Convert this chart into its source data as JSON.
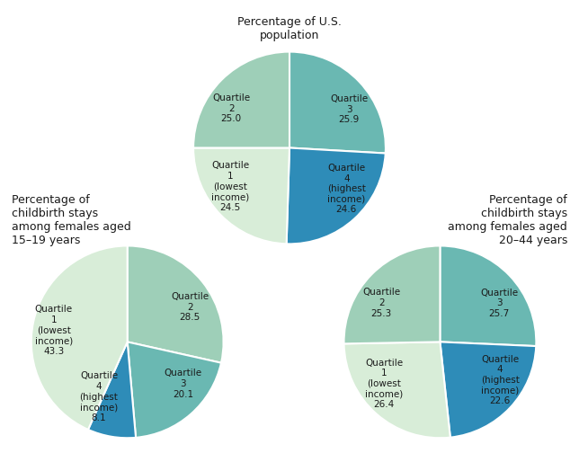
{
  "pie1": {
    "title": "Percentage of U.S.\npopulation",
    "values": [
      25.9,
      24.6,
      24.5,
      25.0
    ],
    "labels": [
      "Quartile\n3\n25.9",
      "Quartile\n4\n(highest\nincome)\n24.6",
      "Quartile\n1\n(lowest\nincome)\n24.5",
      "Quartile\n2\n25.0"
    ],
    "colors": [
      "#6ab8b2",
      "#2e8cb8",
      "#d8edd8",
      "#9ecfb8"
    ],
    "startangle": 90
  },
  "pie2": {
    "title": "Percentage of\nchildbirth stays\namong females aged\n15–19 years",
    "values": [
      28.5,
      20.1,
      8.1,
      43.3
    ],
    "labels": [
      "Quartile\n2\n28.5",
      "Quartile\n3\n20.1",
      "Quartile\n4\n(highest\nincome)\n8.1",
      "Quartile\n1\n(lowest\nincome)\n43.3"
    ],
    "colors": [
      "#9ecfb8",
      "#6ab8b2",
      "#2e8cb8",
      "#d8edd8"
    ],
    "startangle": 90
  },
  "pie3": {
    "title": "Percentage of\nchildbirth stays\namong females aged\n20–44 years",
    "values": [
      25.7,
      22.6,
      26.4,
      25.3
    ],
    "labels": [
      "Quartile\n3\n25.7",
      "Quartile\n4\n(highest\nincome)\n22.6",
      "Quartile\n1\n(lowest\nincome)\n26.4",
      "Quartile\n2\n25.3"
    ],
    "colors": [
      "#6ab8b2",
      "#2e8cb8",
      "#d8edd8",
      "#9ecfb8"
    ],
    "startangle": 90
  },
  "text_color": "#1a1a1a",
  "label_fontsize": 7.5,
  "title_fontsize": 9
}
